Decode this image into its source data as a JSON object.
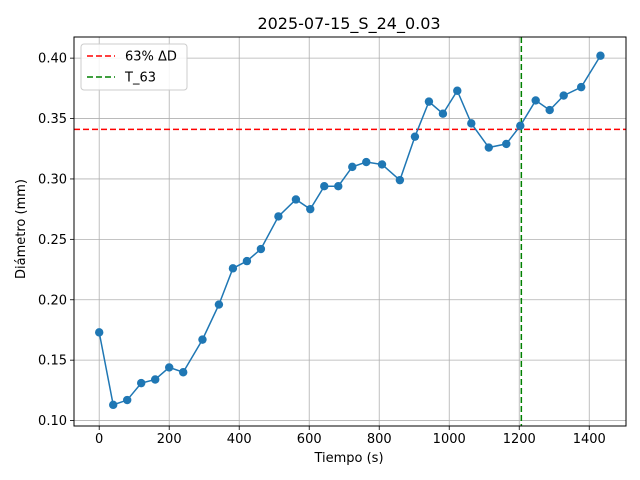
{
  "chart_data": {
    "type": "line",
    "title": "2025-07-15_S_24_0.03",
    "xlabel": "Tiempo (s)",
    "ylabel": "Diámetro (mm)",
    "xlim": [
      -72,
      1505
    ],
    "ylim": [
      0.0955,
      0.4175
    ],
    "xticks": [
      0,
      200,
      400,
      600,
      800,
      1000,
      1200,
      1400
    ],
    "yticks": [
      0.1,
      0.15,
      0.2,
      0.25,
      0.3,
      0.35,
      0.4
    ],
    "grid": true,
    "legend_position": "top-left",
    "series": [
      {
        "color": "#1f77b4",
        "marker": "circle",
        "x": [
          0,
          40,
          80,
          120,
          160,
          200,
          240,
          295,
          342,
          382,
          422,
          462,
          512,
          562,
          603,
          643,
          683,
          723,
          763,
          808,
          859,
          902,
          942,
          982,
          1023,
          1063,
          1113,
          1163,
          1203,
          1247,
          1287,
          1327,
          1377,
          1432
        ],
        "y": [
          0.173,
          0.113,
          0.117,
          0.131,
          0.134,
          0.144,
          0.14,
          0.167,
          0.196,
          0.226,
          0.232,
          0.242,
          0.269,
          0.283,
          0.275,
          0.294,
          0.294,
          0.31,
          0.314,
          0.312,
          0.299,
          0.335,
          0.364,
          0.354,
          0.373,
          0.346,
          0.326,
          0.329,
          0.344,
          0.365,
          0.357,
          0.369,
          0.376,
          0.402
        ]
      }
    ],
    "reference_lines": [
      {
        "orientation": "horizontal",
        "value": 0.341,
        "color": "#ff0000",
        "style": "dashed",
        "label": "63% ΔD"
      },
      {
        "orientation": "vertical",
        "value": 1206,
        "color": "#008000",
        "style": "dashed",
        "label": "T_63"
      }
    ]
  }
}
